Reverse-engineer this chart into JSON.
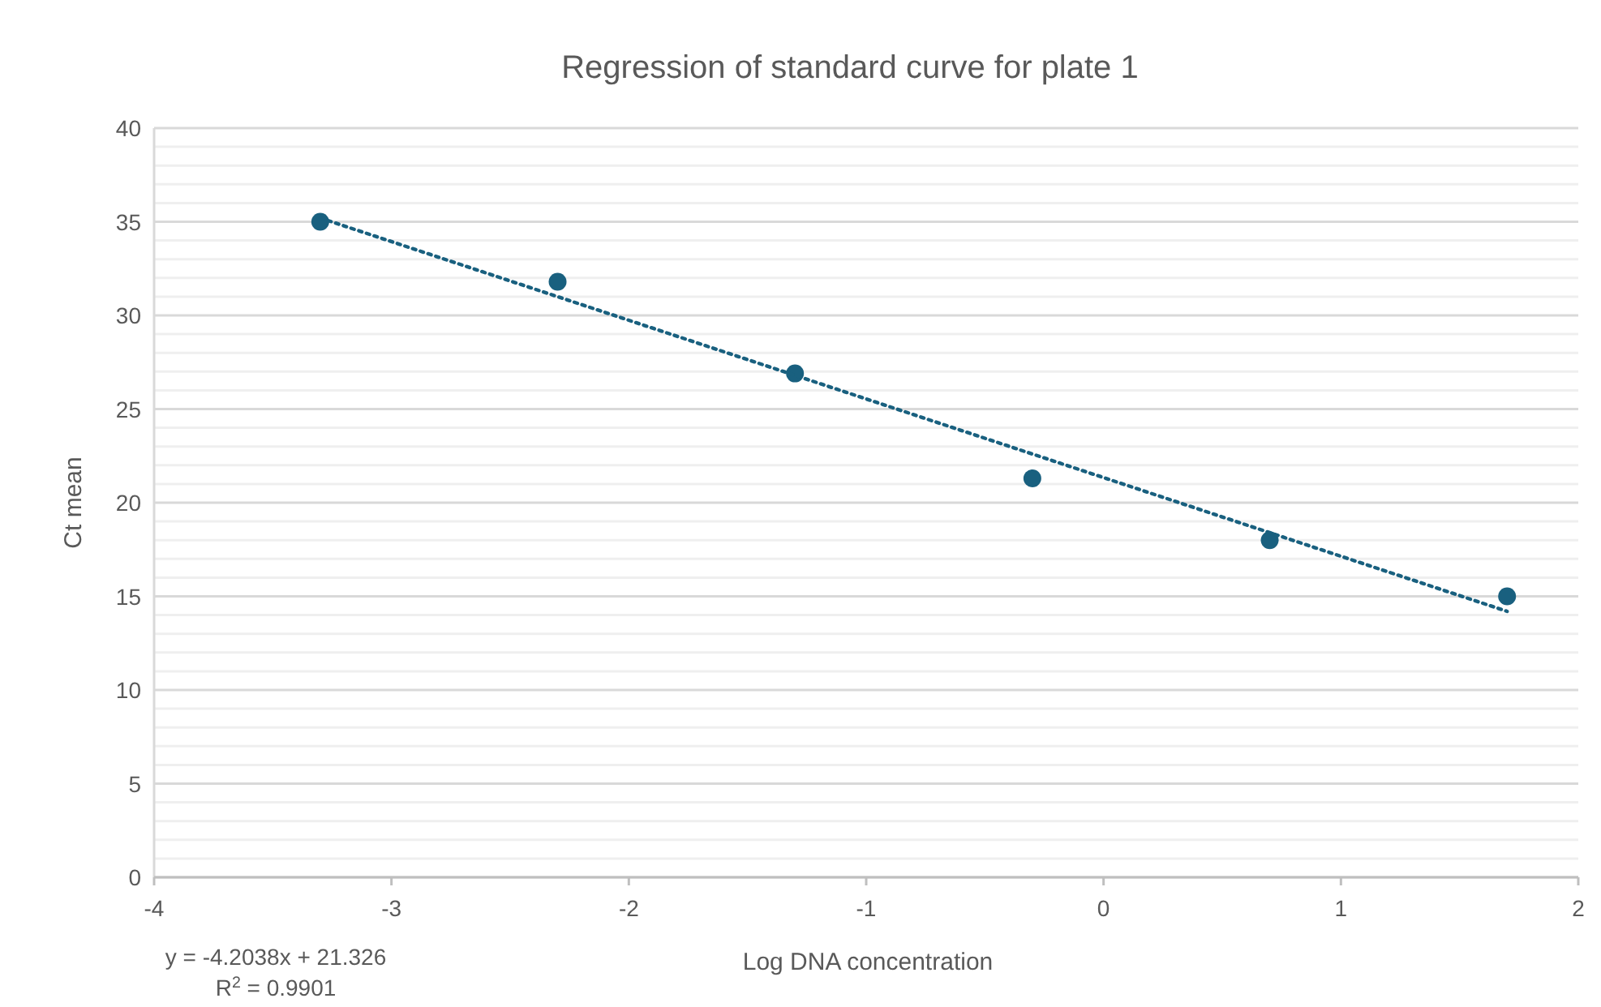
{
  "chart_data": {
    "type": "scatter",
    "title": "Regression of standard curve for plate 1",
    "xlabel": "Log DNA concentration",
    "ylabel": "Ct mean",
    "x": [
      -3.3,
      -2.3,
      -1.3,
      -0.3,
      0.7,
      1.7
    ],
    "series": [
      {
        "color": "#19607f",
        "values": [
          35.0,
          31.8,
          26.9,
          21.3,
          18.0,
          15.0
        ],
        "marker": "circle"
      },
      {
        "type": "line",
        "color": "#19607f",
        "x": [
          -3.3,
          1.7
        ],
        "values": [
          35.2,
          14.2
        ],
        "line_style": "dotted",
        "marker": "none"
      }
    ],
    "xlim": [
      -4,
      2
    ],
    "xticks": [
      -4,
      -3,
      -2,
      -1,
      0,
      1,
      2
    ],
    "ylim": [
      0,
      40
    ],
    "yticks": [
      0,
      5,
      10,
      15,
      20,
      25,
      30,
      35,
      40
    ],
    "grid": "y",
    "annotations": [
      "y = -4.2038x + 21.326",
      "R$^{2}$ = 0.9901"
    ]
  }
}
